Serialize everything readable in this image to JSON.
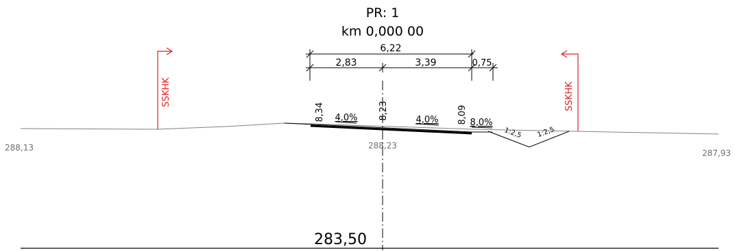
{
  "header": {
    "profile_label": "PR: 1",
    "chainage_label": "km 0,000 00"
  },
  "dimensions": {
    "total_width": "6,22",
    "left_width": "2,83",
    "right_width": "3,39",
    "shoulder_width": "0,75"
  },
  "road": {
    "left_edge_elev": "8,34",
    "axis_elev": "8,23",
    "right_edge_elev": "8,09",
    "left_slope": "4,0%",
    "right_slope": "4,0%",
    "shoulder_slope": "8,0%"
  },
  "ditch": {
    "inner_slope": "1:2,5",
    "outer_slope": "1:2,5"
  },
  "terrain": {
    "left_elev": "288,13",
    "axis_elev": "288,23",
    "right_elev": "287,93"
  },
  "reference_level": "283,50",
  "section_marks": {
    "left_label": "SSKHK",
    "right_label": "SSKHK"
  },
  "colors": {
    "line": "#000000",
    "terrain": "#808080",
    "section_mark": "#e02020",
    "annotation": "#6e6e6e"
  }
}
